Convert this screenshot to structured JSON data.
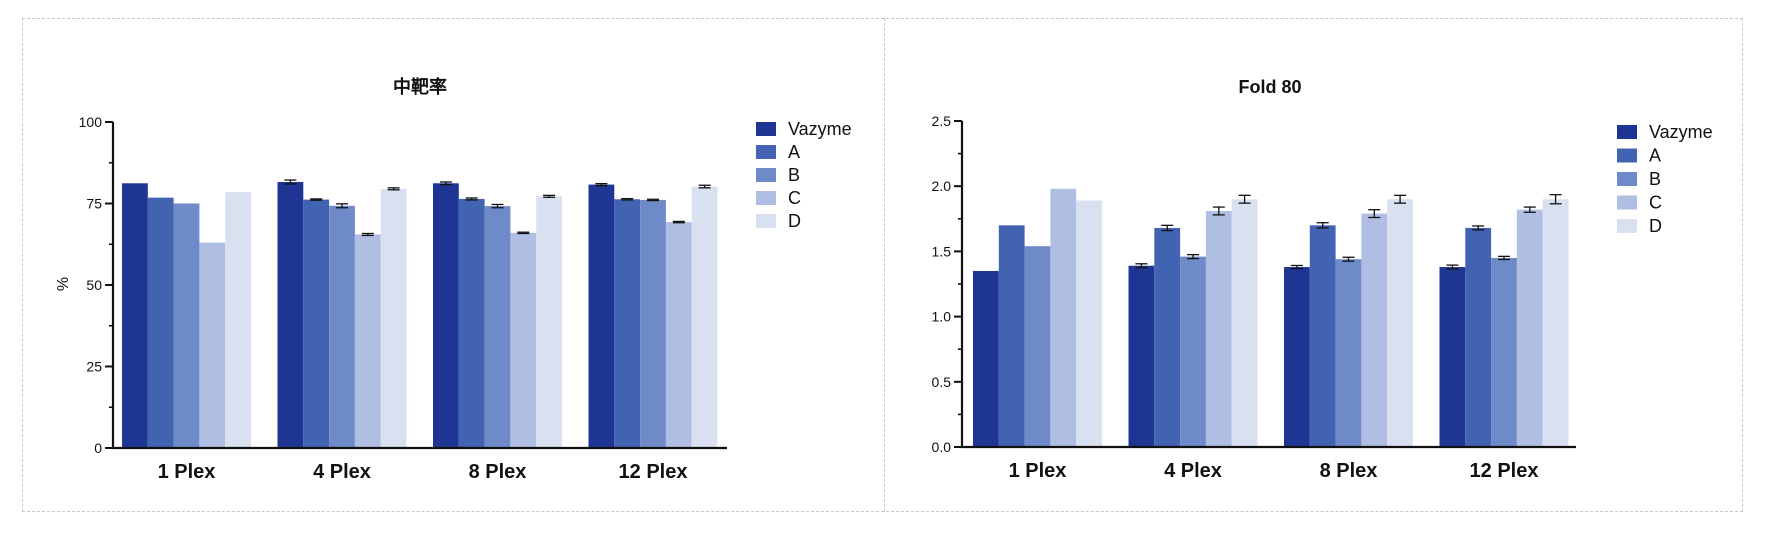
{
  "chart_data": [
    {
      "type": "bar",
      "title": "中靶率",
      "xlabel": "",
      "ylabel": "%",
      "ylim": [
        0,
        100
      ],
      "yticks": [
        0,
        25,
        50,
        75,
        100
      ],
      "ytick_labels": [
        "0",
        "25",
        "50",
        "75",
        "100"
      ],
      "categories": [
        "1 Plex",
        "4 Plex",
        "8 Plex",
        "12 Plex"
      ],
      "legend_position": "right",
      "series": [
        {
          "name": "Vazyme",
          "color": "#1f3593",
          "values": [
            81.2,
            81.6,
            81.2,
            80.8
          ],
          "errors": [
            0,
            0.6,
            0.4,
            0.3
          ]
        },
        {
          "name": "A",
          "color": "#4262b2",
          "values": [
            76.8,
            76.2,
            76.4,
            76.3
          ],
          "errors": [
            0,
            0.2,
            0.3,
            0.2
          ]
        },
        {
          "name": "B",
          "color": "#6f8ac9",
          "values": [
            75.0,
            74.3,
            74.2,
            76.1
          ],
          "errors": [
            0,
            0.6,
            0.5,
            0.2
          ]
        },
        {
          "name": "C",
          "color": "#b0bee3",
          "values": [
            63.0,
            65.5,
            66.0,
            69.3
          ],
          "errors": [
            0,
            0.3,
            0.2,
            0.2
          ]
        },
        {
          "name": "D",
          "color": "#d9e0f0",
          "values": [
            78.5,
            79.5,
            77.2,
            80.2
          ],
          "errors": [
            0,
            0.3,
            0.3,
            0.4
          ]
        }
      ]
    },
    {
      "type": "bar",
      "title": "Fold 80",
      "xlabel": "",
      "ylabel": "",
      "ylim": [
        0,
        2.5
      ],
      "yticks": [
        0,
        0.5,
        1.0,
        1.5,
        2.0,
        2.5
      ],
      "ytick_labels": [
        "0.0",
        "0.5",
        "1.0",
        "1.5",
        "2.0",
        "2.5"
      ],
      "categories": [
        "1 Plex",
        "4 Plex",
        "8 Plex",
        "12 Plex"
      ],
      "legend_position": "right",
      "series": [
        {
          "name": "Vazyme",
          "color": "#1f3593",
          "values": [
            1.35,
            1.39,
            1.38,
            1.38
          ],
          "errors": [
            0,
            0.015,
            0.012,
            0.015
          ]
        },
        {
          "name": "A",
          "color": "#4262b2",
          "values": [
            1.7,
            1.68,
            1.7,
            1.68
          ],
          "errors": [
            0,
            0.02,
            0.02,
            0.015
          ]
        },
        {
          "name": "B",
          "color": "#6f8ac9",
          "values": [
            1.54,
            1.46,
            1.44,
            1.45
          ],
          "errors": [
            0,
            0.015,
            0.015,
            0.012
          ]
        },
        {
          "name": "C",
          "color": "#b0bee3",
          "values": [
            1.98,
            1.81,
            1.79,
            1.82
          ],
          "errors": [
            0,
            0.03,
            0.03,
            0.02
          ]
        },
        {
          "name": "D",
          "color": "#d9e0f0",
          "values": [
            1.89,
            1.9,
            1.9,
            1.9
          ],
          "errors": [
            0,
            0.03,
            0.03,
            0.035
          ]
        }
      ]
    }
  ]
}
